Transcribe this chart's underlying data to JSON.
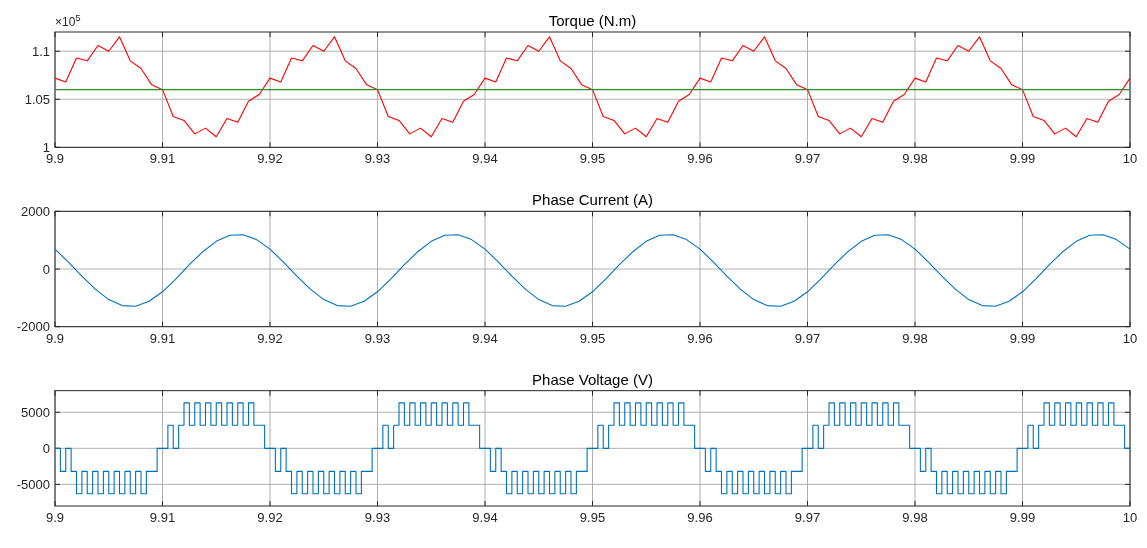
{
  "chart_data": [
    {
      "type": "line",
      "title": "Torque (N.m)",
      "annotations": [
        "×10$^{5}$"
      ],
      "grid": true,
      "xlim": [
        9.9,
        10
      ],
      "xticks": [
        9.9,
        9.91,
        9.92,
        9.93,
        9.94,
        9.95,
        9.96,
        9.97,
        9.98,
        9.99,
        10
      ],
      "ylim": [
        1,
        1.12
      ],
      "yticks": [
        1,
        1.05,
        1.1
      ],
      "ref_lines": [
        {
          "axis": "y",
          "value": 1.06,
          "color": "#2e8b2e"
        }
      ],
      "x": [
        9.9,
        9.901,
        9.902,
        9.903,
        9.904,
        9.905,
        9.906,
        9.907,
        9.908,
        9.909,
        9.91,
        9.911,
        9.912,
        9.913,
        9.914,
        9.915,
        9.916,
        9.917,
        9.918,
        9.919,
        9.92,
        9.921,
        9.922,
        9.923,
        9.924,
        9.925,
        9.926,
        9.927,
        9.928,
        9.929,
        9.93,
        9.931,
        9.932,
        9.933,
        9.934,
        9.935,
        9.936,
        9.937,
        9.938,
        9.939,
        9.94,
        9.941,
        9.942,
        9.943,
        9.944,
        9.945,
        9.946,
        9.947,
        9.948,
        9.949,
        9.95,
        9.951,
        9.952,
        9.953,
        9.954,
        9.955,
        9.956,
        9.957,
        9.958,
        9.959,
        9.96,
        9.961,
        9.962,
        9.963,
        9.964,
        9.965,
        9.966,
        9.967,
        9.968,
        9.969,
        9.97,
        9.971,
        9.972,
        9.973,
        9.974,
        9.975,
        9.976,
        9.977,
        9.978,
        9.979,
        9.98,
        9.981,
        9.982,
        9.983,
        9.984,
        9.985,
        9.986,
        9.987,
        9.988,
        9.989,
        9.99,
        9.991,
        9.992,
        9.993,
        9.994,
        9.995,
        9.996,
        9.997,
        9.998,
        9.999,
        10
      ],
      "series": [
        {
          "color": "#ff0000",
          "values": [
            1.072,
            1.068,
            1.093,
            1.09,
            1.106,
            1.1,
            1.115,
            1.09,
            1.082,
            1.065,
            1.06,
            1.032,
            1.028,
            1.014,
            1.02,
            1.011,
            1.03,
            1.026,
            1.048,
            1.055,
            1.072,
            1.068,
            1.093,
            1.09,
            1.106,
            1.1,
            1.115,
            1.09,
            1.082,
            1.065,
            1.06,
            1.032,
            1.028,
            1.014,
            1.02,
            1.011,
            1.03,
            1.026,
            1.048,
            1.055,
            1.072,
            1.068,
            1.093,
            1.09,
            1.106,
            1.1,
            1.115,
            1.09,
            1.082,
            1.065,
            1.06,
            1.032,
            1.028,
            1.014,
            1.02,
            1.011,
            1.03,
            1.026,
            1.048,
            1.055,
            1.072,
            1.068,
            1.093,
            1.09,
            1.106,
            1.1,
            1.115,
            1.09,
            1.082,
            1.065,
            1.06,
            1.032,
            1.028,
            1.014,
            1.02,
            1.011,
            1.03,
            1.026,
            1.048,
            1.055,
            1.072,
            1.068,
            1.093,
            1.09,
            1.106,
            1.1,
            1.115,
            1.09,
            1.082,
            1.065,
            1.06,
            1.032,
            1.028,
            1.014,
            1.02,
            1.011,
            1.03,
            1.026,
            1.048,
            1.055,
            1.072
          ]
        }
      ]
    },
    {
      "type": "line",
      "title": "Phase Current (A)",
      "grid": true,
      "xlim": [
        9.9,
        10
      ],
      "xticks": [
        9.9,
        9.91,
        9.92,
        9.93,
        9.94,
        9.95,
        9.96,
        9.97,
        9.98,
        9.99,
        10
      ],
      "ylim": [
        -2000,
        2000
      ],
      "yticks": [
        -2000,
        0,
        2000
      ],
      "x": [
        9.9,
        9.90125,
        9.9025,
        9.90375,
        9.905,
        9.90625,
        9.9075,
        9.90875,
        9.91,
        9.91125,
        9.9125,
        9.91375,
        9.915,
        9.91625,
        9.9175,
        9.91875,
        9.92,
        9.92125,
        9.9225,
        9.92375,
        9.925,
        9.92625,
        9.9275,
        9.92875,
        9.93,
        9.93125,
        9.9325,
        9.93375,
        9.935,
        9.93625,
        9.9375,
        9.93875,
        9.94,
        9.94125,
        9.9425,
        9.94375,
        9.945,
        9.94625,
        9.9475,
        9.94875,
        9.95,
        9.95125,
        9.9525,
        9.95375,
        9.955,
        9.95625,
        9.9575,
        9.95875,
        9.96,
        9.96125,
        9.9625,
        9.96375,
        9.965,
        9.96625,
        9.9675,
        9.96875,
        9.97,
        9.97125,
        9.9725,
        9.97375,
        9.975,
        9.97625,
        9.9775,
        9.97875,
        9.98,
        9.98125,
        9.9825,
        9.98375,
        9.985,
        9.98625,
        9.9875,
        9.98875,
        9.99,
        9.99125,
        9.9925,
        9.99375,
        9.995,
        9.99625,
        9.9975,
        9.99875,
        10
      ],
      "series": [
        {
          "color": "#0072bd",
          "values": [
            690,
            240,
            -250,
            -700,
            -1060,
            -1270,
            -1290,
            -1120,
            -790,
            -340,
            150,
            600,
            960,
            1170,
            1190,
            1020,
            690,
            240,
            -250,
            -700,
            -1060,
            -1270,
            -1290,
            -1120,
            -790,
            -340,
            150,
            600,
            960,
            1170,
            1190,
            1020,
            690,
            240,
            -250,
            -700,
            -1060,
            -1270,
            -1290,
            -1120,
            -790,
            -340,
            150,
            600,
            960,
            1170,
            1190,
            1020,
            690,
            240,
            -250,
            -700,
            -1060,
            -1270,
            -1290,
            -1120,
            -790,
            -340,
            150,
            600,
            960,
            1170,
            1190,
            1020,
            690,
            240,
            -250,
            -700,
            -1060,
            -1270,
            -1290,
            -1120,
            -790,
            -340,
            150,
            600,
            960,
            1170,
            1190,
            1020,
            690
          ]
        }
      ]
    },
    {
      "type": "step",
      "title": "Phase Voltage (V)",
      "grid": true,
      "xlim": [
        9.9,
        10
      ],
      "xticks": [
        9.9,
        9.91,
        9.92,
        9.93,
        9.94,
        9.95,
        9.96,
        9.97,
        9.98,
        9.99,
        10
      ],
      "ylim": [
        -8000,
        8000
      ],
      "yticks": [
        -5000,
        0,
        5000
      ],
      "x": [
        9.9,
        9.9005,
        9.901,
        9.9015,
        9.902,
        9.9025,
        9.903,
        9.9035,
        9.904,
        9.9045,
        9.905,
        9.9055,
        9.906,
        9.9065,
        9.907,
        9.9075,
        9.908,
        9.9085,
        9.909,
        9.9095,
        9.91,
        9.9105,
        9.911,
        9.9115,
        9.912,
        9.9125,
        9.913,
        9.9135,
        9.914,
        9.9145,
        9.915,
        9.9155,
        9.916,
        9.9165,
        9.917,
        9.9175,
        9.918,
        9.9185,
        9.919,
        9.9195,
        9.92,
        9.9205,
        9.921,
        9.9215,
        9.922,
        9.9225,
        9.923,
        9.9235,
        9.924,
        9.9245,
        9.925,
        9.9255,
        9.926,
        9.9265,
        9.927,
        9.9275,
        9.928,
        9.9285,
        9.929,
        9.9295,
        9.93,
        9.9305,
        9.931,
        9.9315,
        9.932,
        9.9325,
        9.933,
        9.9335,
        9.934,
        9.9345,
        9.935,
        9.9355,
        9.936,
        9.9365,
        9.937,
        9.9375,
        9.938,
        9.9385,
        9.939,
        9.9395,
        9.94,
        9.9405,
        9.941,
        9.9415,
        9.942,
        9.9425,
        9.943,
        9.9435,
        9.944,
        9.9445,
        9.945,
        9.9455,
        9.946,
        9.9465,
        9.947,
        9.9475,
        9.948,
        9.9485,
        9.949,
        9.9495,
        9.95,
        9.9505,
        9.951,
        9.9515,
        9.952,
        9.9525,
        9.953,
        9.9535,
        9.954,
        9.9545,
        9.955,
        9.9555,
        9.956,
        9.9565,
        9.957,
        9.9575,
        9.958,
        9.9585,
        9.959,
        9.9595,
        9.96,
        9.9605,
        9.961,
        9.9615,
        9.962,
        9.9625,
        9.963,
        9.9635,
        9.964,
        9.9645,
        9.965,
        9.9655,
        9.966,
        9.9665,
        9.967,
        9.9675,
        9.968,
        9.9685,
        9.969,
        9.9695,
        9.97,
        9.9705,
        9.971,
        9.9715,
        9.972,
        9.9725,
        9.973,
        9.9735,
        9.974,
        9.9745,
        9.975,
        9.9755,
        9.976,
        9.9765,
        9.977,
        9.9775,
        9.978,
        9.9785,
        9.979,
        9.9795,
        9.98,
        9.9805,
        9.981,
        9.9815,
        9.982,
        9.9825,
        9.983,
        9.9835,
        9.984,
        9.9845,
        9.985,
        9.9855,
        9.986,
        9.9865,
        9.987,
        9.9875,
        9.988,
        9.9885,
        9.989,
        9.9895,
        9.99,
        9.9905,
        9.991,
        9.9915,
        9.992,
        9.9925,
        9.993,
        9.9935,
        9.994,
        9.9945,
        9.995,
        9.9955,
        9.996,
        9.9965,
        9.997,
        9.9975,
        9.998,
        9.9985,
        9.999,
        9.9995,
        10
      ],
      "series": [
        {
          "color": "#0072bd",
          "values": [
            0,
            -3200,
            0,
            -3200,
            -6300,
            -3200,
            -6300,
            -3200,
            -6300,
            -3200,
            -6300,
            -3200,
            -6300,
            -3200,
            -6300,
            -3200,
            -6300,
            -3200,
            -3200,
            0,
            0,
            3200,
            0,
            3200,
            6300,
            3200,
            6300,
            3200,
            6300,
            3200,
            6300,
            3200,
            6300,
            3200,
            6300,
            3200,
            6300,
            3200,
            3200,
            0,
            0,
            -3200,
            0,
            -3200,
            -6300,
            -3200,
            -6300,
            -3200,
            -6300,
            -3200,
            -6300,
            -3200,
            -6300,
            -3200,
            -6300,
            -3200,
            -6300,
            -3200,
            -3200,
            0,
            0,
            3200,
            0,
            3200,
            6300,
            3200,
            6300,
            3200,
            6300,
            3200,
            6300,
            3200,
            6300,
            3200,
            6300,
            3200,
            6300,
            3200,
            3200,
            0,
            0,
            -3200,
            0,
            -3200,
            -6300,
            -3200,
            -6300,
            -3200,
            -6300,
            -3200,
            -6300,
            -3200,
            -6300,
            -3200,
            -6300,
            -3200,
            -6300,
            -3200,
            -3200,
            0,
            0,
            3200,
            0,
            3200,
            6300,
            3200,
            6300,
            3200,
            6300,
            3200,
            6300,
            3200,
            6300,
            3200,
            6300,
            3200,
            6300,
            3200,
            3200,
            0,
            0,
            -3200,
            0,
            -3200,
            -6300,
            -3200,
            -6300,
            -3200,
            -6300,
            -3200,
            -6300,
            -3200,
            -6300,
            -3200,
            -6300,
            -3200,
            -6300,
            -3200,
            -3200,
            0,
            0,
            3200,
            0,
            3200,
            6300,
            3200,
            6300,
            3200,
            6300,
            3200,
            6300,
            3200,
            6300,
            3200,
            6300,
            3200,
            6300,
            3200,
            3200,
            0,
            0,
            -3200,
            0,
            -3200,
            -6300,
            -3200,
            -6300,
            -3200,
            -6300,
            -3200,
            -6300,
            -3200,
            -6300,
            -3200,
            -6300,
            -3200,
            -6300,
            -3200,
            -3200,
            0,
            0,
            3200,
            0,
            3200,
            6300,
            3200,
            6300,
            3200,
            6300,
            3200,
            6300,
            3200,
            6300,
            3200,
            6300,
            3200,
            6300,
            3200,
            3200,
            0,
            0
          ]
        }
      ]
    }
  ]
}
